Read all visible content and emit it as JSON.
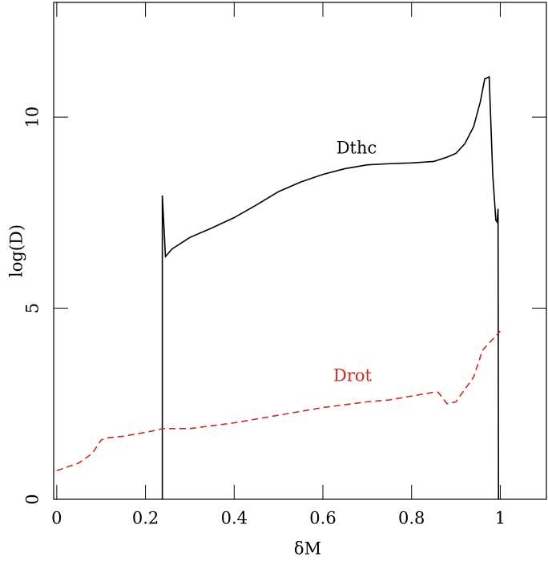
{
  "chart_data": {
    "type": "line",
    "xlabel": "δM",
    "ylabel": "log(D)",
    "xlim": [
      -0.007,
      1.104
    ],
    "ylim": [
      0,
      13
    ],
    "xticks": [
      0,
      0.2,
      0.4,
      0.6,
      0.8,
      1
    ],
    "yticks": [
      0,
      5,
      10
    ],
    "series": [
      {
        "name": "Dthc",
        "color": "#000000",
        "dash": false,
        "x": [
          0.238,
          0.238,
          0.245,
          0.26,
          0.3,
          0.35,
          0.4,
          0.45,
          0.5,
          0.55,
          0.6,
          0.65,
          0.7,
          0.75,
          0.8,
          0.85,
          0.88,
          0.9,
          0.92,
          0.94,
          0.955,
          0.965,
          0.975,
          0.983,
          0.99,
          0.993,
          0.995,
          0.996
        ],
        "values": [
          0,
          7.95,
          6.35,
          6.55,
          6.85,
          7.1,
          7.37,
          7.7,
          8.05,
          8.3,
          8.5,
          8.65,
          8.75,
          8.78,
          8.8,
          8.84,
          8.95,
          9.05,
          9.3,
          9.75,
          10.4,
          11.0,
          11.05,
          8.5,
          7.3,
          7.25,
          7.6,
          0
        ]
      },
      {
        "name": "Drot",
        "color": "#cc2a1a",
        "dash": true,
        "x": [
          0,
          0.05,
          0.08,
          0.1,
          0.11,
          0.15,
          0.2,
          0.24,
          0.3,
          0.4,
          0.5,
          0.55,
          0.6,
          0.7,
          0.75,
          0.8,
          0.85,
          0.86,
          0.88,
          0.9,
          0.94,
          0.96,
          1.0
        ],
        "values": [
          0.75,
          0.95,
          1.2,
          1.55,
          1.6,
          1.65,
          1.75,
          1.85,
          1.85,
          2.0,
          2.2,
          2.3,
          2.4,
          2.55,
          2.6,
          2.7,
          2.8,
          2.8,
          2.5,
          2.55,
          3.2,
          3.9,
          4.4
        ]
      }
    ]
  }
}
